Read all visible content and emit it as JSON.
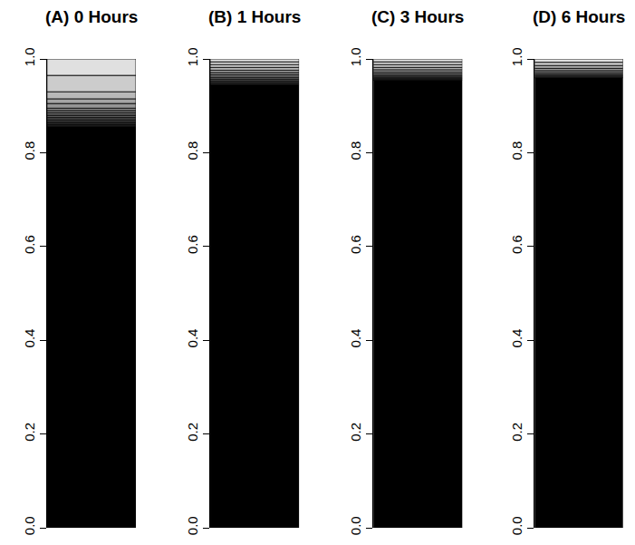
{
  "chart_data": [
    {
      "type": "bar",
      "title": "(A) 0 Hours",
      "stacked": true,
      "tick_labels": "y",
      "values": [
        0.855,
        0.005,
        0.005,
        0.005,
        0.005,
        0.005,
        0.005,
        0.005,
        0.005,
        0.01,
        0.01,
        0.015,
        0.035,
        0.035
      ],
      "colors": [
        "#000000",
        "#1a1a1a",
        "#2b2b2b",
        "#3b3b3b",
        "#4a4a4a",
        "#595959",
        "#686868",
        "#777777",
        "#868686",
        "#959595",
        "#a4a4a4",
        "#b8b8b8",
        "#cccccc",
        "#e0e0e0"
      ],
      "ylim": [
        0,
        1
      ],
      "yticks": [
        {
          "value": 0,
          "label": "0.0"
        },
        {
          "value": 0.2,
          "label": "0.2"
        },
        {
          "value": 0.4,
          "label": "0.4"
        },
        {
          "value": 0.6,
          "label": "0.6"
        },
        {
          "value": 0.8,
          "label": "0.8"
        },
        {
          "value": 1,
          "label": "1.0"
        }
      ]
    },
    {
      "type": "bar",
      "title": "(B) 1 Hours",
      "stacked": true,
      "tick_labels": "y",
      "values": [
        0.945,
        0.004,
        0.004,
        0.004,
        0.004,
        0.005,
        0.005,
        0.005,
        0.006,
        0.006,
        0.006,
        0.006
      ],
      "colors": [
        "#000000",
        "#262626",
        "#3a3a3a",
        "#4e4e4e",
        "#626262",
        "#767676",
        "#8a8a8a",
        "#9e9e9e",
        "#b2b2b2",
        "#c6c6c6",
        "#d6d6d6",
        "#e4e4e4"
      ],
      "ylim": [
        0,
        1
      ],
      "yticks": [
        {
          "value": 0,
          "label": "0.0"
        },
        {
          "value": 0.2,
          "label": "0.2"
        },
        {
          "value": 0.4,
          "label": "0.4"
        },
        {
          "value": 0.6,
          "label": "0.6"
        },
        {
          "value": 0.8,
          "label": "0.8"
        },
        {
          "value": 1,
          "label": "1.0"
        }
      ]
    },
    {
      "type": "bar",
      "title": "(C) 3 Hours",
      "stacked": true,
      "tick_labels": "y",
      "values": [
        0.955,
        0.003,
        0.003,
        0.003,
        0.004,
        0.004,
        0.005,
        0.005,
        0.006,
        0.006,
        0.006
      ],
      "colors": [
        "#000000",
        "#262626",
        "#3c3c3c",
        "#525252",
        "#686868",
        "#7e7e7e",
        "#949494",
        "#aaaaaa",
        "#c0c0c0",
        "#d4d4d4",
        "#e4e4e4"
      ],
      "ylim": [
        0,
        1
      ],
      "yticks": [
        {
          "value": 0,
          "label": "0.0"
        },
        {
          "value": 0.2,
          "label": "0.2"
        },
        {
          "value": 0.4,
          "label": "0.4"
        },
        {
          "value": 0.6,
          "label": "0.6"
        },
        {
          "value": 0.8,
          "label": "0.8"
        },
        {
          "value": 1,
          "label": "1.0"
        }
      ]
    },
    {
      "type": "bar",
      "title": "(D) 6 Hours",
      "stacked": true,
      "tick_labels": "y",
      "values": [
        0.96,
        0.003,
        0.003,
        0.004,
        0.005,
        0.005,
        0.006,
        0.007,
        0.007
      ],
      "colors": [
        "#000000",
        "#2e2e2e",
        "#474747",
        "#606060",
        "#797979",
        "#929292",
        "#ababab",
        "#c4c4c4",
        "#e0e0e0"
      ],
      "ylim": [
        0,
        1
      ],
      "yticks": [
        {
          "value": 0,
          "label": "0.0"
        },
        {
          "value": 0.2,
          "label": "0.2"
        },
        {
          "value": 0.4,
          "label": "0.4"
        },
        {
          "value": 0.6,
          "label": "0.6"
        },
        {
          "value": 0.8,
          "label": "0.8"
        },
        {
          "value": 1,
          "label": "1.0"
        }
      ]
    }
  ]
}
